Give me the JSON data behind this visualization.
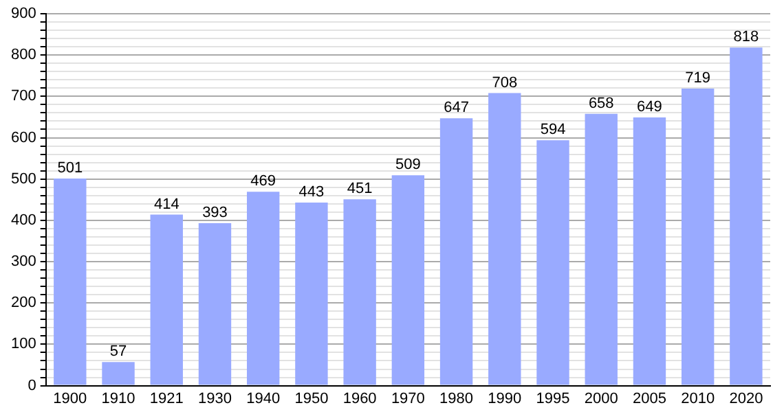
{
  "chart_data": {
    "type": "bar",
    "categories": [
      "1900",
      "1910",
      "1921",
      "1930",
      "1940",
      "1950",
      "1960",
      "1970",
      "1980",
      "1990",
      "1995",
      "2000",
      "2005",
      "2010",
      "2020"
    ],
    "values": [
      501,
      57,
      414,
      393,
      469,
      443,
      451,
      509,
      647,
      708,
      594,
      658,
      649,
      719,
      818
    ],
    "color": "#99aaff",
    "ylim": [
      0,
      900
    ],
    "yticks": [
      0,
      {
        "value": 20,
        "label": null
      },
      {
        "value": 40,
        "label": null
      },
      {
        "value": 60,
        "label": null
      },
      {
        "value": 80,
        "label": null
      },
      100,
      {
        "value": 120,
        "label": null
      },
      {
        "value": 140,
        "label": null
      },
      {
        "value": 160,
        "label": null
      },
      {
        "value": 180,
        "label": null
      },
      200,
      {
        "value": 220,
        "label": null
      },
      {
        "value": 240,
        "label": null
      },
      {
        "value": 260,
        "label": null
      },
      {
        "value": 280,
        "label": null
      },
      300,
      {
        "value": 320,
        "label": null
      },
      {
        "value": 340,
        "label": null
      },
      {
        "value": 360,
        "label": null
      },
      {
        "value": 380,
        "label": null
      },
      400,
      {
        "value": 420,
        "label": null
      },
      {
        "value": 440,
        "label": null
      },
      {
        "value": 460,
        "label": null
      },
      {
        "value": 480,
        "label": null
      },
      500,
      {
        "value": 520,
        "label": null
      },
      {
        "value": 540,
        "label": null
      },
      {
        "value": 560,
        "label": null
      },
      {
        "value": 580,
        "label": null
      },
      600,
      {
        "value": 620,
        "label": null
      },
      {
        "value": 640,
        "label": null
      },
      {
        "value": 660,
        "label": null
      },
      {
        "value": 680,
        "label": null
      },
      700,
      {
        "value": 720,
        "label": null
      },
      {
        "value": 740,
        "label": null
      },
      {
        "value": 760,
        "label": null
      },
      {
        "value": 780,
        "label": null
      },
      800,
      {
        "value": 820,
        "label": null
      },
      {
        "value": 840,
        "label": null
      },
      {
        "value": 860,
        "label": null
      },
      {
        "value": 880,
        "label": null
      },
      900
    ],
    "grid": "y",
    "data_labels": true
  }
}
